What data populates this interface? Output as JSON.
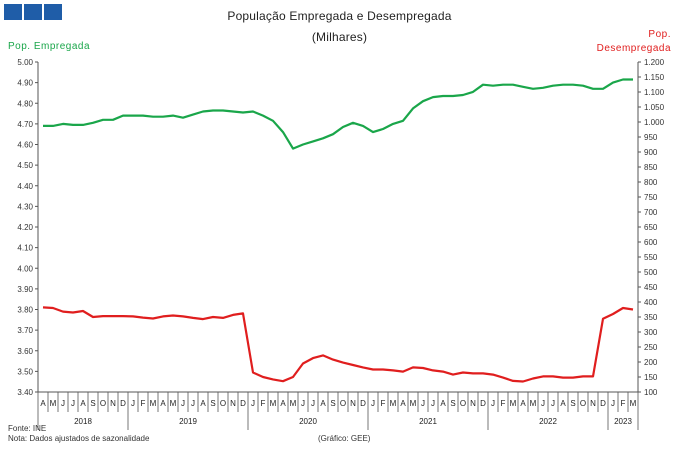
{
  "header": {
    "title": "População Empregada e Desempregada",
    "subtitle": "(Milhares)"
  },
  "footer": {
    "source": "Fonte: INE",
    "note": "Nota: Dados ajustados de sazonalidade",
    "credit": "(Gráfico: GEE)"
  },
  "colors": {
    "employed": "#1aa64a",
    "unemployed": "#e01e1e",
    "logo": "#1f5da8"
  },
  "chart_data": {
    "type": "line",
    "title": "População Empregada e Desempregada",
    "subtitle": "(Milhares)",
    "ylabel_left": "Pop. Empregada",
    "ylabel_right_lines": [
      "Pop.",
      "Desempregada"
    ],
    "ylim_left": [
      3.4,
      5.0
    ],
    "yticks_left": [
      "3.40",
      "3.50",
      "3.60",
      "3.70",
      "3.80",
      "3.90",
      "4.00",
      "4.10",
      "4.20",
      "4.30",
      "4.40",
      "4.50",
      "4.60",
      "4.70",
      "4.80",
      "4.90",
      "5.00"
    ],
    "ylim_right": [
      100,
      1200
    ],
    "yticks_right": [
      "100",
      "150",
      "200",
      "250",
      "300",
      "350",
      "400",
      "450",
      "500",
      "550",
      "600",
      "650",
      "700",
      "750",
      "800",
      "850",
      "900",
      "950",
      "1.000",
      "1.050",
      "1.100",
      "1.150",
      "1.200"
    ],
    "month_labels": [
      "A",
      "M",
      "J",
      "J",
      "A",
      "S",
      "O",
      "N",
      "D",
      "J",
      "F",
      "M",
      "A",
      "M",
      "J",
      "J",
      "A",
      "S",
      "O",
      "N",
      "D",
      "J",
      "F",
      "M",
      "A",
      "M",
      "J",
      "J",
      "A",
      "S",
      "O",
      "N",
      "D",
      "J",
      "F",
      "M",
      "A",
      "M",
      "J",
      "J",
      "A",
      "S",
      "O",
      "N",
      "D",
      "J",
      "F",
      "M",
      "A",
      "M",
      "J",
      "J",
      "A",
      "S",
      "O",
      "N",
      "D",
      "J",
      "F",
      "M"
    ],
    "years": [
      {
        "label": "2018",
        "start": 0,
        "count": 9
      },
      {
        "label": "2019",
        "start": 9,
        "count": 12
      },
      {
        "label": "2020",
        "start": 21,
        "count": 12
      },
      {
        "label": "2021",
        "start": 33,
        "count": 12
      },
      {
        "label": "2022",
        "start": 45,
        "count": 12
      },
      {
        "label": "2023",
        "start": 57,
        "count": 3
      }
    ],
    "grid": false,
    "series": [
      {
        "name": "Pop. Empregada",
        "axis": "left",
        "color": "#1aa64a",
        "values": [
          4.69,
          4.69,
          4.7,
          4.695,
          4.695,
          4.705,
          4.72,
          4.72,
          4.74,
          4.74,
          4.74,
          4.735,
          4.735,
          4.74,
          4.73,
          4.745,
          4.76,
          4.765,
          4.765,
          4.76,
          4.755,
          4.76,
          4.74,
          4.715,
          4.66,
          4.58,
          4.6,
          4.615,
          4.63,
          4.65,
          4.685,
          4.705,
          4.69,
          4.66,
          4.675,
          4.7,
          4.715,
          4.775,
          4.81,
          4.83,
          4.835,
          4.835,
          4.84,
          4.855,
          4.89,
          4.885,
          4.89,
          4.89,
          4.88,
          4.87,
          4.875,
          4.885,
          4.89,
          4.89,
          4.885,
          4.87,
          4.87,
          4.9,
          4.915,
          4.915
        ]
      },
      {
        "name": "Pop. Desempregada",
        "axis": "right",
        "color": "#e01e1e",
        "values": [
          382,
          380,
          368,
          365,
          370,
          350,
          353,
          353,
          353,
          352,
          348,
          345,
          352,
          355,
          352,
          347,
          343,
          350,
          347,
          357,
          362,
          165,
          150,
          142,
          136,
          150,
          195,
          213,
          222,
          208,
          198,
          190,
          182,
          175,
          175,
          172,
          168,
          182,
          180,
          172,
          168,
          158,
          165,
          162,
          162,
          158,
          148,
          137,
          135,
          145,
          152,
          152,
          148,
          148,
          152,
          152,
          344,
          360,
          380,
          375
        ]
      }
    ]
  }
}
